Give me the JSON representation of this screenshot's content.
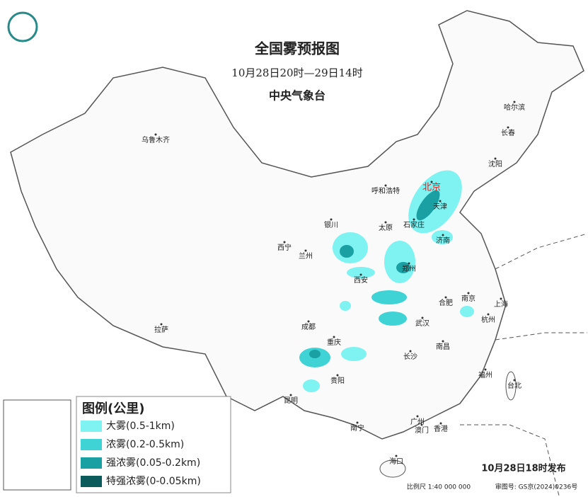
{
  "header": {
    "title": "全国雾预报图",
    "subtitle": "10月28日20时—29日14时",
    "issuer": "中央气象台"
  },
  "cities": [
    "乌鲁木齐",
    "哈尔滨",
    "长春",
    "沈阳",
    "北京",
    "天津",
    "呼和浩特",
    "石家庄",
    "太原",
    "银川",
    "济南",
    "西宁",
    "兰州",
    "郑州",
    "西安",
    "合肥",
    "南京",
    "上海",
    "杭州",
    "武汉",
    "成都",
    "拉萨",
    "重庆",
    "长沙",
    "南昌",
    "贵阳",
    "福州",
    "台北",
    "昆明",
    "南宁",
    "广州",
    "澳门",
    "香港",
    "海口"
  ],
  "legend": {
    "title": "图例(公里)",
    "items": [
      {
        "label": "大雾(0.5-1km)",
        "color": "#7ff2f2"
      },
      {
        "label": "浓雾(0.2-0.5km)",
        "color": "#3fd3d6"
      },
      {
        "label": "强浓雾(0.05-0.2km)",
        "color": "#1a9fa3"
      },
      {
        "label": "特强浓雾(0-0.05km)",
        "color": "#0b5a5c"
      }
    ]
  },
  "footer": {
    "release": "10月28日18时发布",
    "scale": "比例尺 1:40 000 000",
    "approval": "审图号: GS京(2024)0236号"
  }
}
